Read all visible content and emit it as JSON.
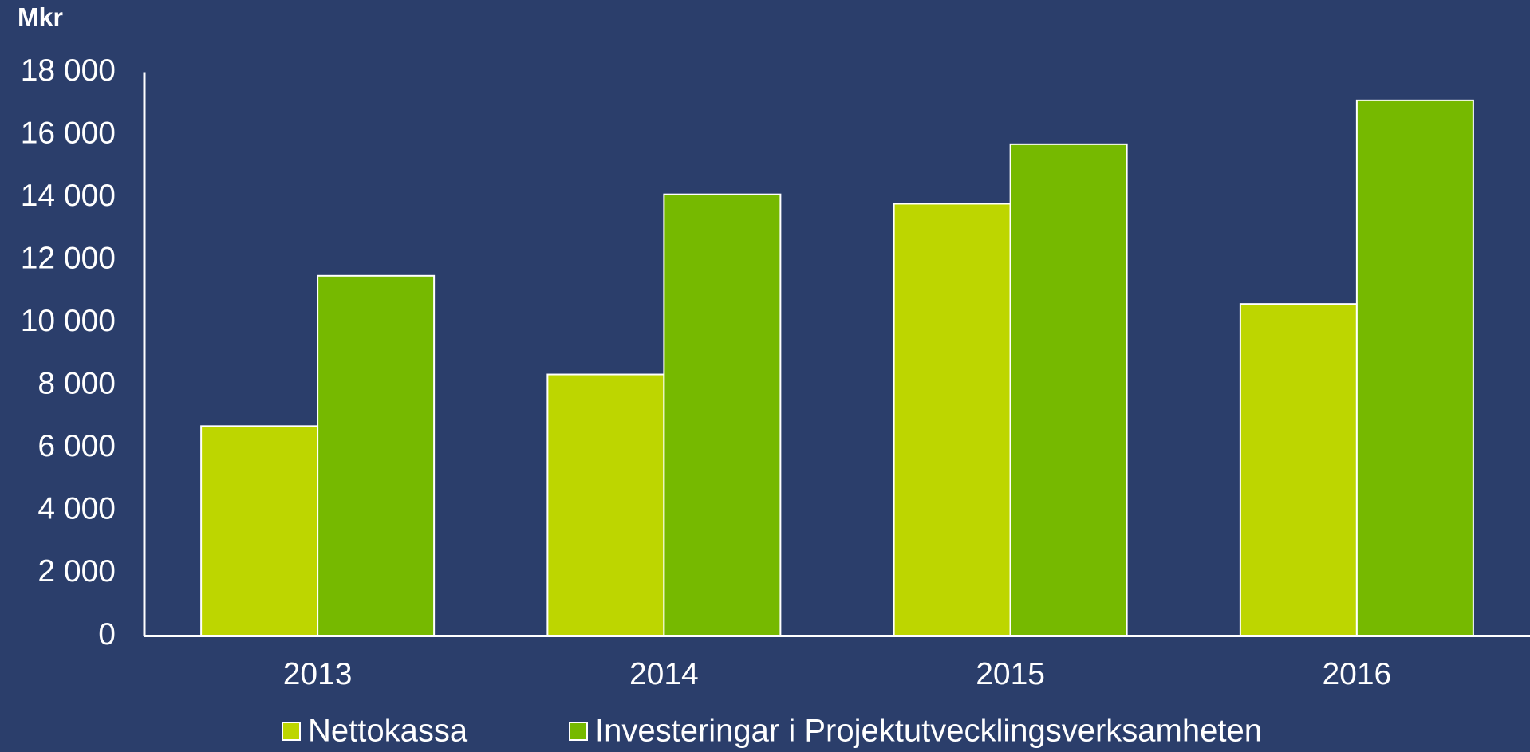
{
  "chart_data": {
    "type": "bar",
    "title": "Mkr",
    "categories": [
      "2013",
      "2014",
      "2015",
      "2016"
    ],
    "series": [
      {
        "name": "Nettokassa",
        "color": "#bdd600",
        "values": [
          6700,
          8350,
          13800,
          10600
        ]
      },
      {
        "name": "Investeringar i Projektutvecklingsverksamheten",
        "color": "#76b900",
        "values": [
          11500,
          14100,
          15700,
          17100
        ]
      }
    ],
    "ylim": [
      0,
      18000
    ],
    "yticks": [
      0,
      {
        "value": 2000,
        "label": "2 000"
      },
      {
        "value": 4000,
        "label": "4 000"
      },
      {
        "value": 6000,
        "label": "6 000"
      },
      {
        "value": 8000,
        "label": "8 000"
      },
      {
        "value": 10000,
        "label": "10 000"
      },
      {
        "value": 12000,
        "label": "12 000"
      },
      {
        "value": 14000,
        "label": "14 000"
      },
      {
        "value": 16000,
        "label": "16 000"
      },
      {
        "value": 18000,
        "label": "18 000"
      }
    ],
    "legend": "bottom",
    "grid": false
  }
}
